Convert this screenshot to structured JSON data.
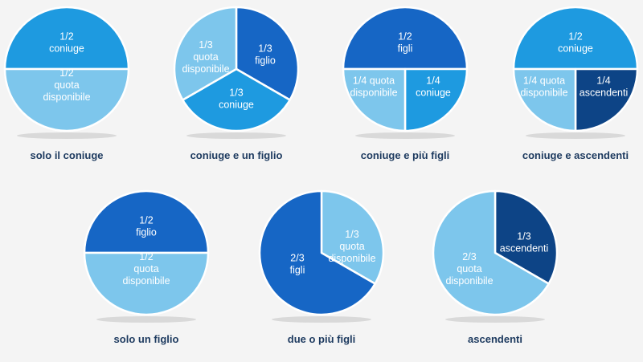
{
  "colors": {
    "light": "#7dc6ec",
    "medium": "#1e9ae0",
    "dark": "#1666c5",
    "navy": "#0d4486",
    "shadow": "#d9d9d9"
  },
  "chart_data": [
    {
      "type": "pie",
      "title": "solo il coniuge",
      "slices": [
        {
          "label": [
            "1/2",
            "coniuge"
          ],
          "value": 0.5,
          "color": "medium"
        },
        {
          "label": [
            "1/2",
            "quota",
            "disponibile"
          ],
          "value": 0.5,
          "color": "light"
        }
      ]
    },
    {
      "type": "pie",
      "title": "coniuge e un figlio",
      "slices": [
        {
          "label": [
            "1/3",
            "figlio"
          ],
          "value": 0.3333,
          "color": "dark"
        },
        {
          "label": [
            "1/3",
            "coniuge"
          ],
          "value": 0.3333,
          "color": "medium"
        },
        {
          "label": [
            "1/3",
            "quota",
            "disponibile"
          ],
          "value": 0.3333,
          "color": "light"
        }
      ]
    },
    {
      "type": "pie",
      "title": "coniuge e più figli",
      "slices": [
        {
          "label": [
            "1/2",
            "figli"
          ],
          "value": 0.5,
          "color": "dark"
        },
        {
          "label": [
            "1/4",
            "coniuge"
          ],
          "value": 0.25,
          "color": "medium"
        },
        {
          "label": [
            "1/4 quota",
            "disponibile"
          ],
          "value": 0.25,
          "color": "light"
        }
      ]
    },
    {
      "type": "pie",
      "title": "coniuge e ascendenti",
      "slices": [
        {
          "label": [
            "1/2",
            "coniuge"
          ],
          "value": 0.5,
          "color": "medium"
        },
        {
          "label": [
            "1/4",
            "ascendenti"
          ],
          "value": 0.25,
          "color": "navy"
        },
        {
          "label": [
            "1/4 quota",
            "disponibile"
          ],
          "value": 0.25,
          "color": "light"
        }
      ]
    },
    {
      "type": "pie",
      "title": "solo un figlio",
      "slices": [
        {
          "label": [
            "1/2",
            "figlio"
          ],
          "value": 0.5,
          "color": "dark"
        },
        {
          "label": [
            "1/2",
            "quota",
            "disponibile"
          ],
          "value": 0.5,
          "color": "light"
        }
      ]
    },
    {
      "type": "pie",
      "title": "due o più figli",
      "slices": [
        {
          "label": [
            "1/3",
            "quota",
            "disponibile"
          ],
          "value": 0.3333,
          "color": "light"
        },
        {
          "label": [
            "2/3",
            "figli"
          ],
          "value": 0.6667,
          "color": "dark"
        }
      ]
    },
    {
      "type": "pie",
      "title": "ascendenti",
      "slices": [
        {
          "label": [
            "1/3",
            "ascendenti"
          ],
          "value": 0.3333,
          "color": "navy"
        },
        {
          "label": [
            "2/3",
            "quota",
            "disponibile"
          ],
          "value": 0.6667,
          "color": "light"
        }
      ]
    }
  ]
}
